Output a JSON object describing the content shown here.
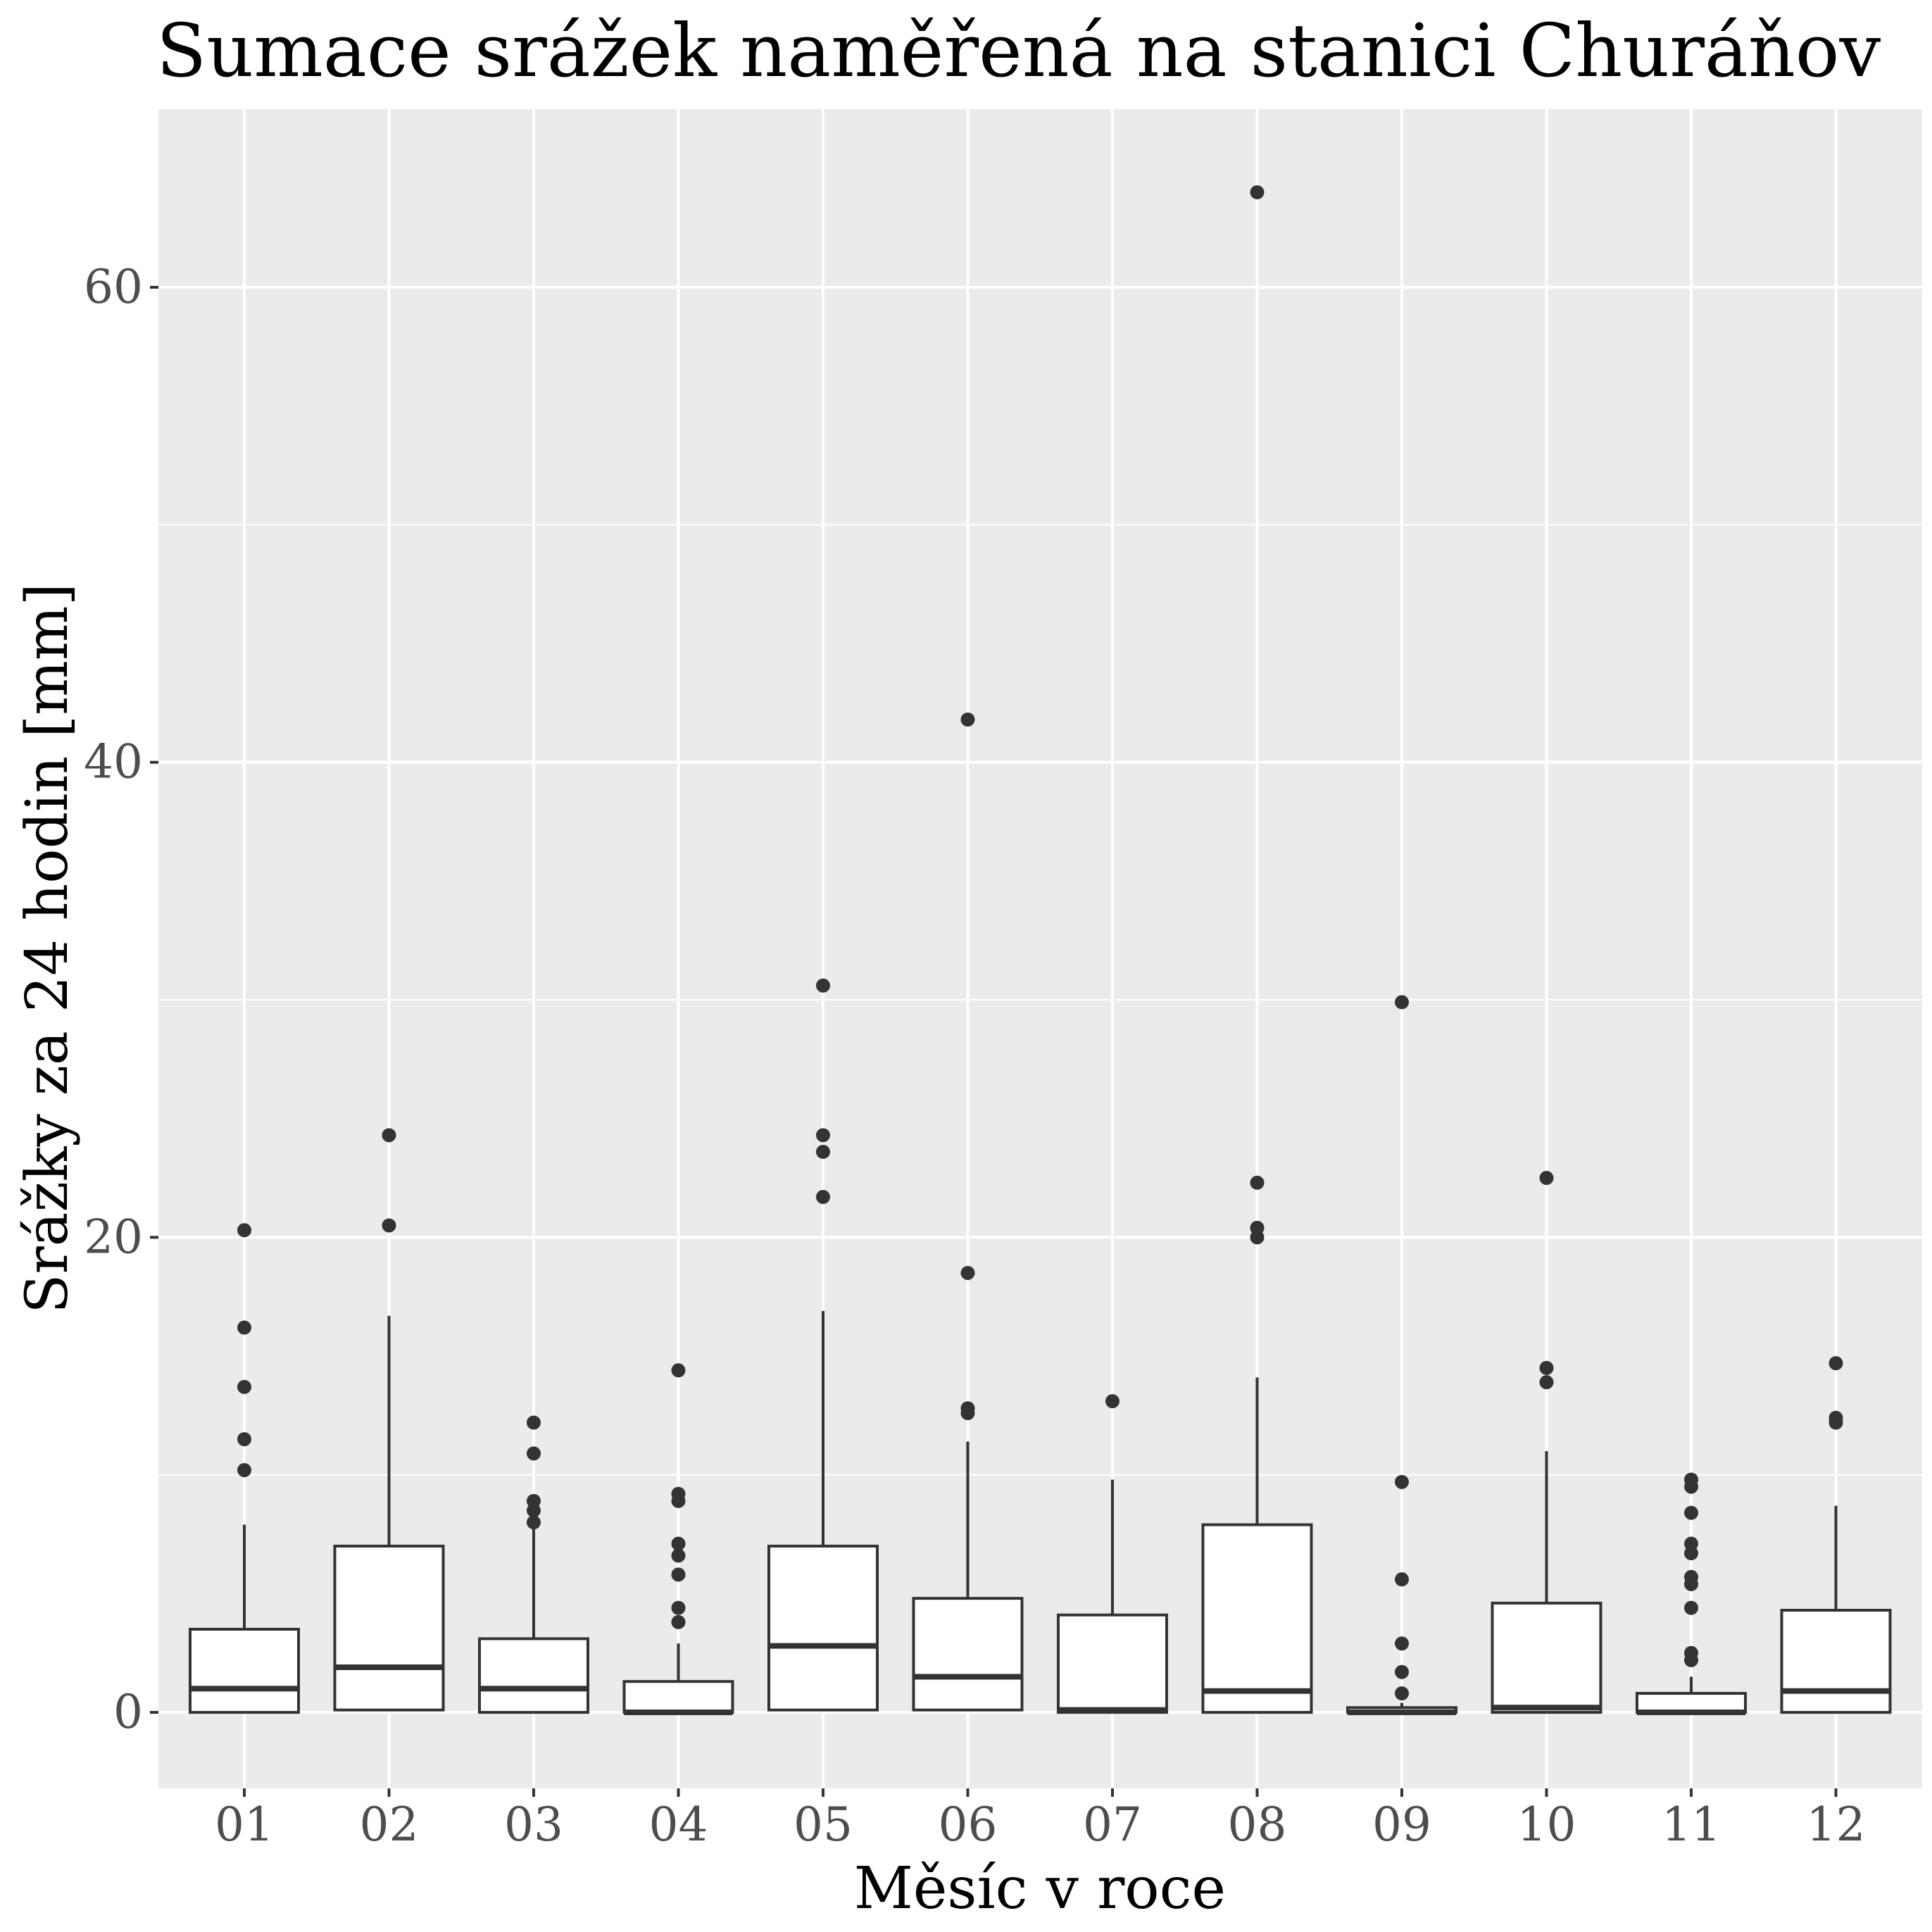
{
  "chart_data": {
    "type": "box",
    "title": "Sumace srážek naměřená na stanici Churáňov",
    "xlabel": "Měsíc v roce",
    "ylabel": "Srážky za 24 hodin [mm]",
    "ylim": [
      -3.2,
      67.5
    ],
    "y_major_ticks": [
      0,
      20,
      40,
      60
    ],
    "y_minor_ticks": [
      10,
      30,
      50
    ],
    "grid": true,
    "legend": "none",
    "colors": {
      "panel": "#ebebeb",
      "grid": "#ffffff",
      "box_fill": "#ffffff",
      "box_line": "#333333",
      "outlier": "#333333",
      "tick_label": "#4d4d4d"
    },
    "categories": [
      "01",
      "02",
      "03",
      "04",
      "05",
      "06",
      "07",
      "08",
      "09",
      "10",
      "11",
      "12"
    ],
    "boxes": [
      {
        "month": "01",
        "whisker_low": 0,
        "q1": 0,
        "median": 1.0,
        "q3": 3.5,
        "whisker_high": 7.9,
        "outliers": [
          10.2,
          11.5,
          13.7,
          16.2,
          20.3
        ]
      },
      {
        "month": "02",
        "whisker_low": 0.1,
        "q1": 0.1,
        "median": 1.9,
        "q3": 7.0,
        "whisker_high": 16.7,
        "outliers": [
          20.5,
          24.3
        ]
      },
      {
        "month": "03",
        "whisker_low": 0,
        "q1": 0,
        "median": 1.0,
        "q3": 3.1,
        "whisker_high": 7.8,
        "outliers": [
          8.0,
          8.5,
          8.9,
          10.9,
          12.2
        ]
      },
      {
        "month": "04",
        "whisker_low": 0,
        "q1": 0,
        "median": 0,
        "q3": 1.3,
        "whisker_high": 2.9,
        "outliers": [
          3.8,
          4.4,
          5.8,
          6.6,
          7.1,
          8.9,
          9.2,
          14.4
        ]
      },
      {
        "month": "05",
        "whisker_low": 0.1,
        "q1": 0.1,
        "median": 2.8,
        "q3": 7.0,
        "whisker_high": 16.9,
        "outliers": [
          21.7,
          23.6,
          24.3,
          30.6
        ]
      },
      {
        "month": "06",
        "whisker_low": 0.1,
        "q1": 0.1,
        "median": 1.5,
        "q3": 4.8,
        "whisker_high": 11.4,
        "outliers": [
          12.6,
          12.8,
          18.5,
          41.8
        ]
      },
      {
        "month": "07",
        "whisker_low": 0,
        "q1": 0,
        "median": 0.1,
        "q3": 4.1,
        "whisker_high": 9.8,
        "outliers": [
          13.1
        ]
      },
      {
        "month": "08",
        "whisker_low": 0,
        "q1": 0,
        "median": 0.9,
        "q3": 7.9,
        "whisker_high": 14.1,
        "outliers": [
          20.0,
          20.4,
          22.3,
          64.0
        ]
      },
      {
        "month": "09",
        "whisker_low": 0,
        "q1": 0,
        "median": 0,
        "q3": 0.2,
        "whisker_high": 0.4,
        "outliers": [
          0.8,
          1.7,
          2.9,
          5.6,
          9.7,
          29.9
        ]
      },
      {
        "month": "10",
        "whisker_low": 0,
        "q1": 0,
        "median": 0.2,
        "q3": 4.6,
        "whisker_high": 11.0,
        "outliers": [
          13.9,
          14.5,
          22.5
        ]
      },
      {
        "month": "11",
        "whisker_low": 0,
        "q1": 0,
        "median": 0,
        "q3": 0.8,
        "whisker_high": 1.5,
        "outliers": [
          2.2,
          2.5,
          4.4,
          5.4,
          5.7,
          6.7,
          7.1,
          8.4,
          9.5,
          9.8
        ]
      },
      {
        "month": "12",
        "whisker_low": 0,
        "q1": 0,
        "median": 0.9,
        "q3": 4.3,
        "whisker_high": 8.7,
        "outliers": [
          12.2,
          12.4,
          14.7
        ]
      }
    ]
  }
}
